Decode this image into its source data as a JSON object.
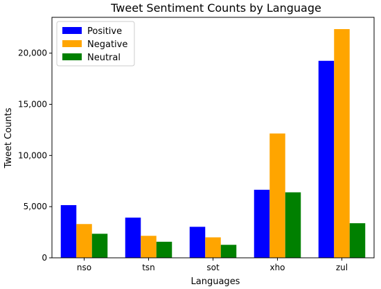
{
  "chart_data": {
    "type": "bar",
    "title": "Tweet Sentiment Counts by Language",
    "xlabel": "Languages",
    "ylabel": "Tweet Counts",
    "categories": [
      "nso",
      "tsn",
      "sot",
      "xho",
      "zul"
    ],
    "series": [
      {
        "name": "Positive",
        "color": "#0000ff",
        "values": [
          5150,
          3930,
          3030,
          6650,
          19250
        ]
      },
      {
        "name": "Negative",
        "color": "#ffa500",
        "values": [
          3300,
          2150,
          2000,
          12150,
          22350
        ]
      },
      {
        "name": "Neutral",
        "color": "#008000",
        "values": [
          2350,
          1570,
          1270,
          6400,
          3380
        ]
      }
    ],
    "ylim": [
      0,
      23500
    ],
    "yticks": [
      0,
      5000,
      10000,
      15000,
      20000
    ],
    "ytick_labels": [
      "0",
      "5,000",
      "10,000",
      "15,000",
      "20,000"
    ],
    "grid": false,
    "legend": "top-left"
  }
}
